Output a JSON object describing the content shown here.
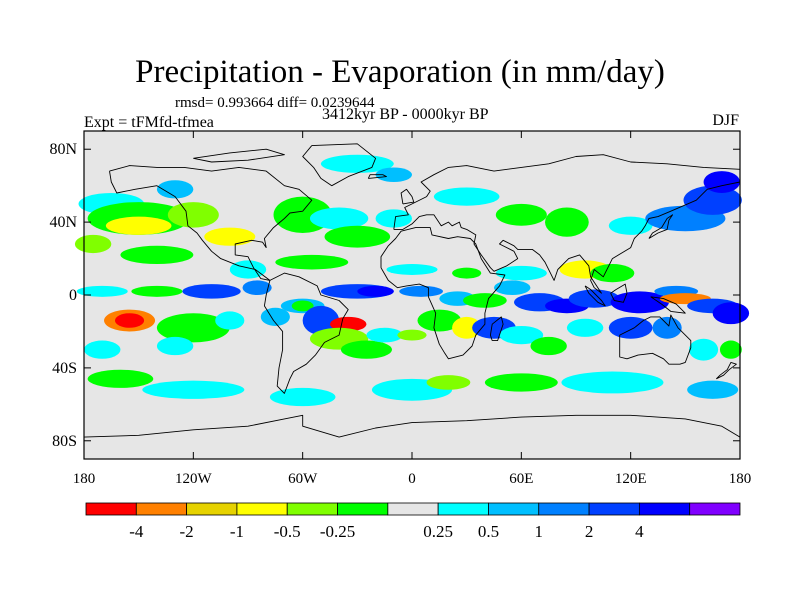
{
  "figure": {
    "title": "Precipitation - Evaporation (in mm/day)",
    "stats": "rmsd= 0.993664  diff= 0.0239644",
    "period": "3412kyr BP - 0000kyr BP",
    "experiment": "Expt = tFMfd-tfmea",
    "season": "DJF"
  },
  "map": {
    "projection": "cylindrical-equidistant",
    "lon_range": [
      -180,
      180
    ],
    "lat_range": [
      -90,
      90
    ],
    "lat_ticks": [
      {
        "value": 80,
        "label": "80N"
      },
      {
        "value": 40,
        "label": "40N"
      },
      {
        "value": 0,
        "label": "0"
      },
      {
        "value": -40,
        "label": "40S"
      },
      {
        "value": -80,
        "label": "80S"
      }
    ],
    "lon_ticks": [
      {
        "value": -180,
        "label": "180"
      },
      {
        "value": -120,
        "label": "120W"
      },
      {
        "value": -60,
        "label": "60W"
      },
      {
        "value": 0,
        "label": "0"
      },
      {
        "value": 60,
        "label": "60E"
      },
      {
        "value": 120,
        "label": "120E"
      },
      {
        "value": 180,
        "label": "180"
      }
    ],
    "background_color": "#e6e6e6",
    "coastline_color": "#000000"
  },
  "colorbar": {
    "colors": [
      "#ff0000",
      "#ff8000",
      "#e6d200",
      "#ffff00",
      "#80ff00",
      "#00ff00",
      "#e6e6e6",
      "#00ffff",
      "#00bfff",
      "#0080ff",
      "#0040ff",
      "#0000ff",
      "#8000ff"
    ],
    "labels": [
      "-4",
      "-2",
      "-1",
      "-0.5",
      "-0.25",
      "0.25",
      "0.5",
      "1",
      "2",
      "4"
    ]
  }
}
